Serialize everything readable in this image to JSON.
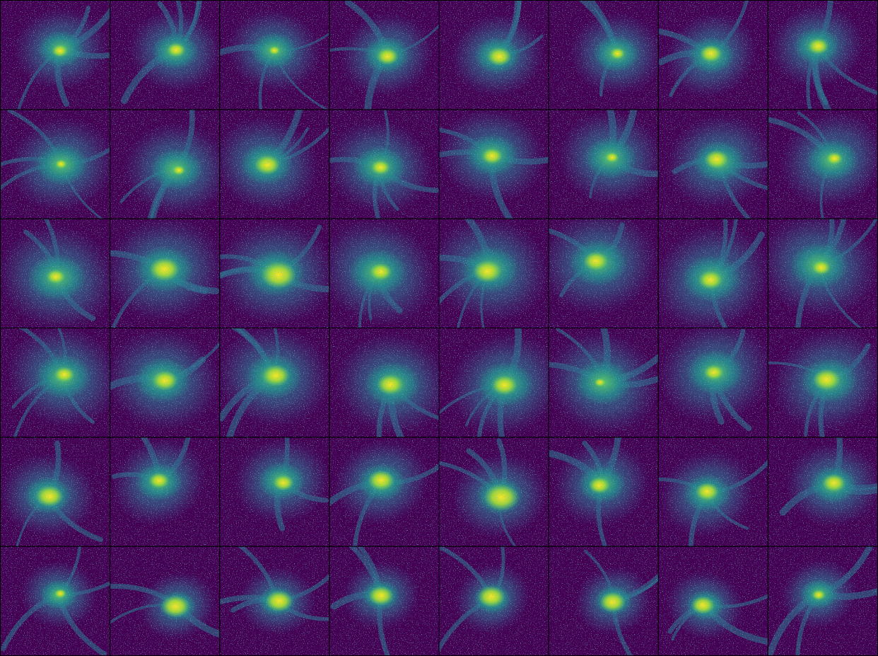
{
  "panels": {
    "rows": 6,
    "columns": 8
  }
}
